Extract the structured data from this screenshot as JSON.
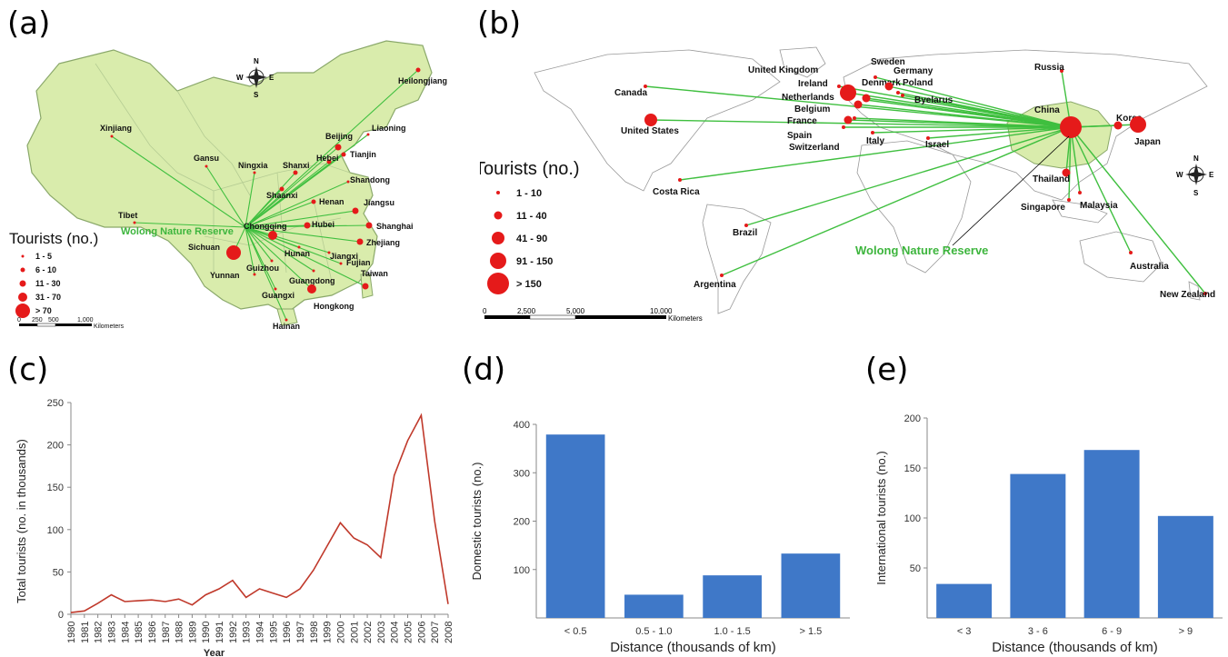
{
  "panels": {
    "a": "(a)",
    "b": "(b)",
    "c": "(c)",
    "d": "(d)",
    "e": "(e)"
  },
  "colors": {
    "land_china": "#d9ecac",
    "land_world": "#ffffff",
    "route": "#3fbf3f",
    "dot": "#e51a1a",
    "line": "#c0392b",
    "bar": "#3f78c8"
  },
  "map_a": {
    "reserve_label": "Wolong Nature Reserve",
    "legend_title": "Tourists (no.)",
    "legend_items": [
      "1 - 5",
      "6 - 10",
      "11 - 30",
      "31 - 70",
      "> 70"
    ],
    "compass": {
      "n": "N",
      "s": "S",
      "e": "E",
      "w": "W"
    },
    "scale_ticks": [
      "0",
      "250",
      "500",
      "1,000"
    ],
    "scale_unit": "Kilometers",
    "provinces": [
      {
        "name": "Heilongjiang",
        "size": 1
      },
      {
        "name": "Liaoning",
        "size": 0
      },
      {
        "name": "Beijing",
        "size": 2
      },
      {
        "name": "Tianjin",
        "size": 1
      },
      {
        "name": "Hebei",
        "size": 1
      },
      {
        "name": "Xinjiang",
        "size": 0
      },
      {
        "name": "Gansu",
        "size": 0
      },
      {
        "name": "Ningxia",
        "size": 0
      },
      {
        "name": "Shanxi",
        "size": 1
      },
      {
        "name": "Shandong",
        "size": 0
      },
      {
        "name": "Shaanxi",
        "size": 1
      },
      {
        "name": "Henan",
        "size": 1
      },
      {
        "name": "Jiangsu",
        "size": 2
      },
      {
        "name": "Shanghai",
        "size": 2
      },
      {
        "name": "Tibet",
        "size": 0
      },
      {
        "name": "Chongqing",
        "size": 3
      },
      {
        "name": "Hubei",
        "size": 2
      },
      {
        "name": "Zhejiang",
        "size": 2
      },
      {
        "name": "Sichuan",
        "size": 4
      },
      {
        "name": "Hunan",
        "size": 0
      },
      {
        "name": "Jiangxi",
        "size": 0
      },
      {
        "name": "Fujian",
        "size": 0
      },
      {
        "name": "Yunnan",
        "size": 0
      },
      {
        "name": "Guizhou",
        "size": 0
      },
      {
        "name": "Guangdong",
        "size": 0
      },
      {
        "name": "Guangxi",
        "size": 0
      },
      {
        "name": "Hongkong",
        "size": 3
      },
      {
        "name": "Taiwan",
        "size": 2
      },
      {
        "name": "Hainan",
        "size": 0
      }
    ]
  },
  "map_b": {
    "reserve_label": "Wolong Nature Reserve",
    "legend_title": "Tourists (no.)",
    "legend_items": [
      "1 - 10",
      "11 - 40",
      "41 - 90",
      "91 - 150",
      "> 150"
    ],
    "compass": {
      "n": "N",
      "s": "S",
      "e": "E",
      "w": "W"
    },
    "scale_ticks": [
      "0",
      "2,500",
      "5,000",
      "10,000"
    ],
    "scale_unit": "Kilometers",
    "countries": [
      {
        "name": "Russia",
        "size": 0
      },
      {
        "name": "Denmark",
        "size": 0
      },
      {
        "name": "Sweden",
        "size": 0
      },
      {
        "name": "Germany",
        "size": 1
      },
      {
        "name": "Poland",
        "size": 0
      },
      {
        "name": "United Kingdom",
        "size": 3
      },
      {
        "name": "Ireland",
        "size": 0
      },
      {
        "name": "Netherlands",
        "size": 1
      },
      {
        "name": "Byelarus",
        "size": 0
      },
      {
        "name": "Canada",
        "size": 0
      },
      {
        "name": "Belgium",
        "size": 1
      },
      {
        "name": "France",
        "size": 1
      },
      {
        "name": "United States",
        "size": 2
      },
      {
        "name": "Spain",
        "size": 0
      },
      {
        "name": "Switzerland",
        "size": 0
      },
      {
        "name": "Italy",
        "size": 0
      },
      {
        "name": "Israel",
        "size": 0
      },
      {
        "name": "China",
        "size": 4
      },
      {
        "name": "Korea",
        "size": 1
      },
      {
        "name": "Japan",
        "size": 3
      },
      {
        "name": "Costa Rica",
        "size": 0
      },
      {
        "name": "Thailand",
        "size": 1
      },
      {
        "name": "Singapore",
        "size": 0
      },
      {
        "name": "Malaysia",
        "size": 0
      },
      {
        "name": "Brazil",
        "size": 0
      },
      {
        "name": "Australia",
        "size": 0
      },
      {
        "name": "Argentina",
        "size": 0
      },
      {
        "name": "New Zealand",
        "size": 0
      }
    ]
  },
  "chart_data": [
    {
      "type": "line",
      "panel": "c",
      "xlabel": "Year",
      "ylabel": "Total tourists (no. in thousands)",
      "ylim": [
        0,
        250
      ],
      "yticks": [
        0,
        50,
        100,
        150,
        200,
        250
      ],
      "x": [
        "1980",
        "1981",
        "1982",
        "1983",
        "1984",
        "1985",
        "1986",
        "1987",
        "1988",
        "1989",
        "1990",
        "1991",
        "1992",
        "1993",
        "1994",
        "1995",
        "1996",
        "1997",
        "1998",
        "1999",
        "2000",
        "2001",
        "2002",
        "2003",
        "2004",
        "2005",
        "2006",
        "2007",
        "2008"
      ],
      "values": [
        2,
        4,
        13,
        23,
        15,
        16,
        17,
        15,
        18,
        11,
        23,
        30,
        40,
        20,
        30,
        25,
        20,
        30,
        52,
        80,
        108,
        90,
        82,
        67,
        164,
        205,
        235,
        110,
        12
      ],
      "grid": false
    },
    {
      "type": "bar",
      "panel": "d",
      "xlabel": "Distance (thousands of km)",
      "ylabel": "Domestic tourists (no.)",
      "ylim": [
        0,
        400
      ],
      "yticks": [
        100,
        200,
        300,
        400
      ],
      "categories": [
        "< 0.5",
        "0.5 - 1.0",
        "1.0 - 1.5",
        "> 1.5"
      ],
      "values": [
        379,
        48,
        88,
        133
      ],
      "grid": false
    },
    {
      "type": "bar",
      "panel": "e",
      "xlabel": "Distance (thousands of km)",
      "ylabel": "International tourists (no.)",
      "ylim": [
        0,
        200
      ],
      "yticks": [
        50,
        100,
        150,
        200
      ],
      "categories": [
        "< 3",
        "3 - 6",
        "6 - 9",
        "> 9"
      ],
      "values": [
        34,
        144,
        168,
        102
      ],
      "grid": false
    }
  ]
}
